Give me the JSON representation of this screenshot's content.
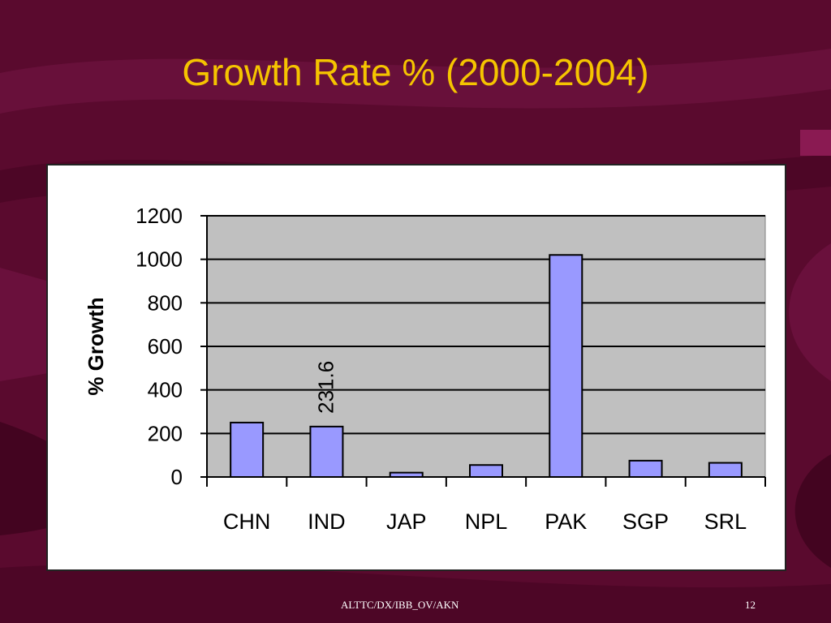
{
  "slide": {
    "title": "Growth Rate % (2000-2004)",
    "footer": "ALTTC/DX/IBB_OV/AKN",
    "page_number": "12"
  },
  "colors": {
    "background": "#5a0a2e",
    "title": "#f5c400",
    "bar_fill": "#9999ff",
    "plot_area": "#c0c0c0"
  },
  "chart_data": {
    "type": "bar",
    "title": "",
    "xlabel": "",
    "ylabel": "% Growth",
    "categories": [
      "CHN",
      "IND",
      "JAP",
      "NPL",
      "PAK",
      "SGP",
      "SRL"
    ],
    "values": [
      250,
      231.6,
      20,
      55,
      1020,
      75,
      65
    ],
    "data_labels": [
      {
        "category": "IND",
        "text": "231.6"
      }
    ],
    "ylim": [
      0,
      1200
    ],
    "yticks": [
      0,
      200,
      400,
      600,
      800,
      1000,
      1200
    ],
    "grid": true,
    "legend": "none"
  }
}
